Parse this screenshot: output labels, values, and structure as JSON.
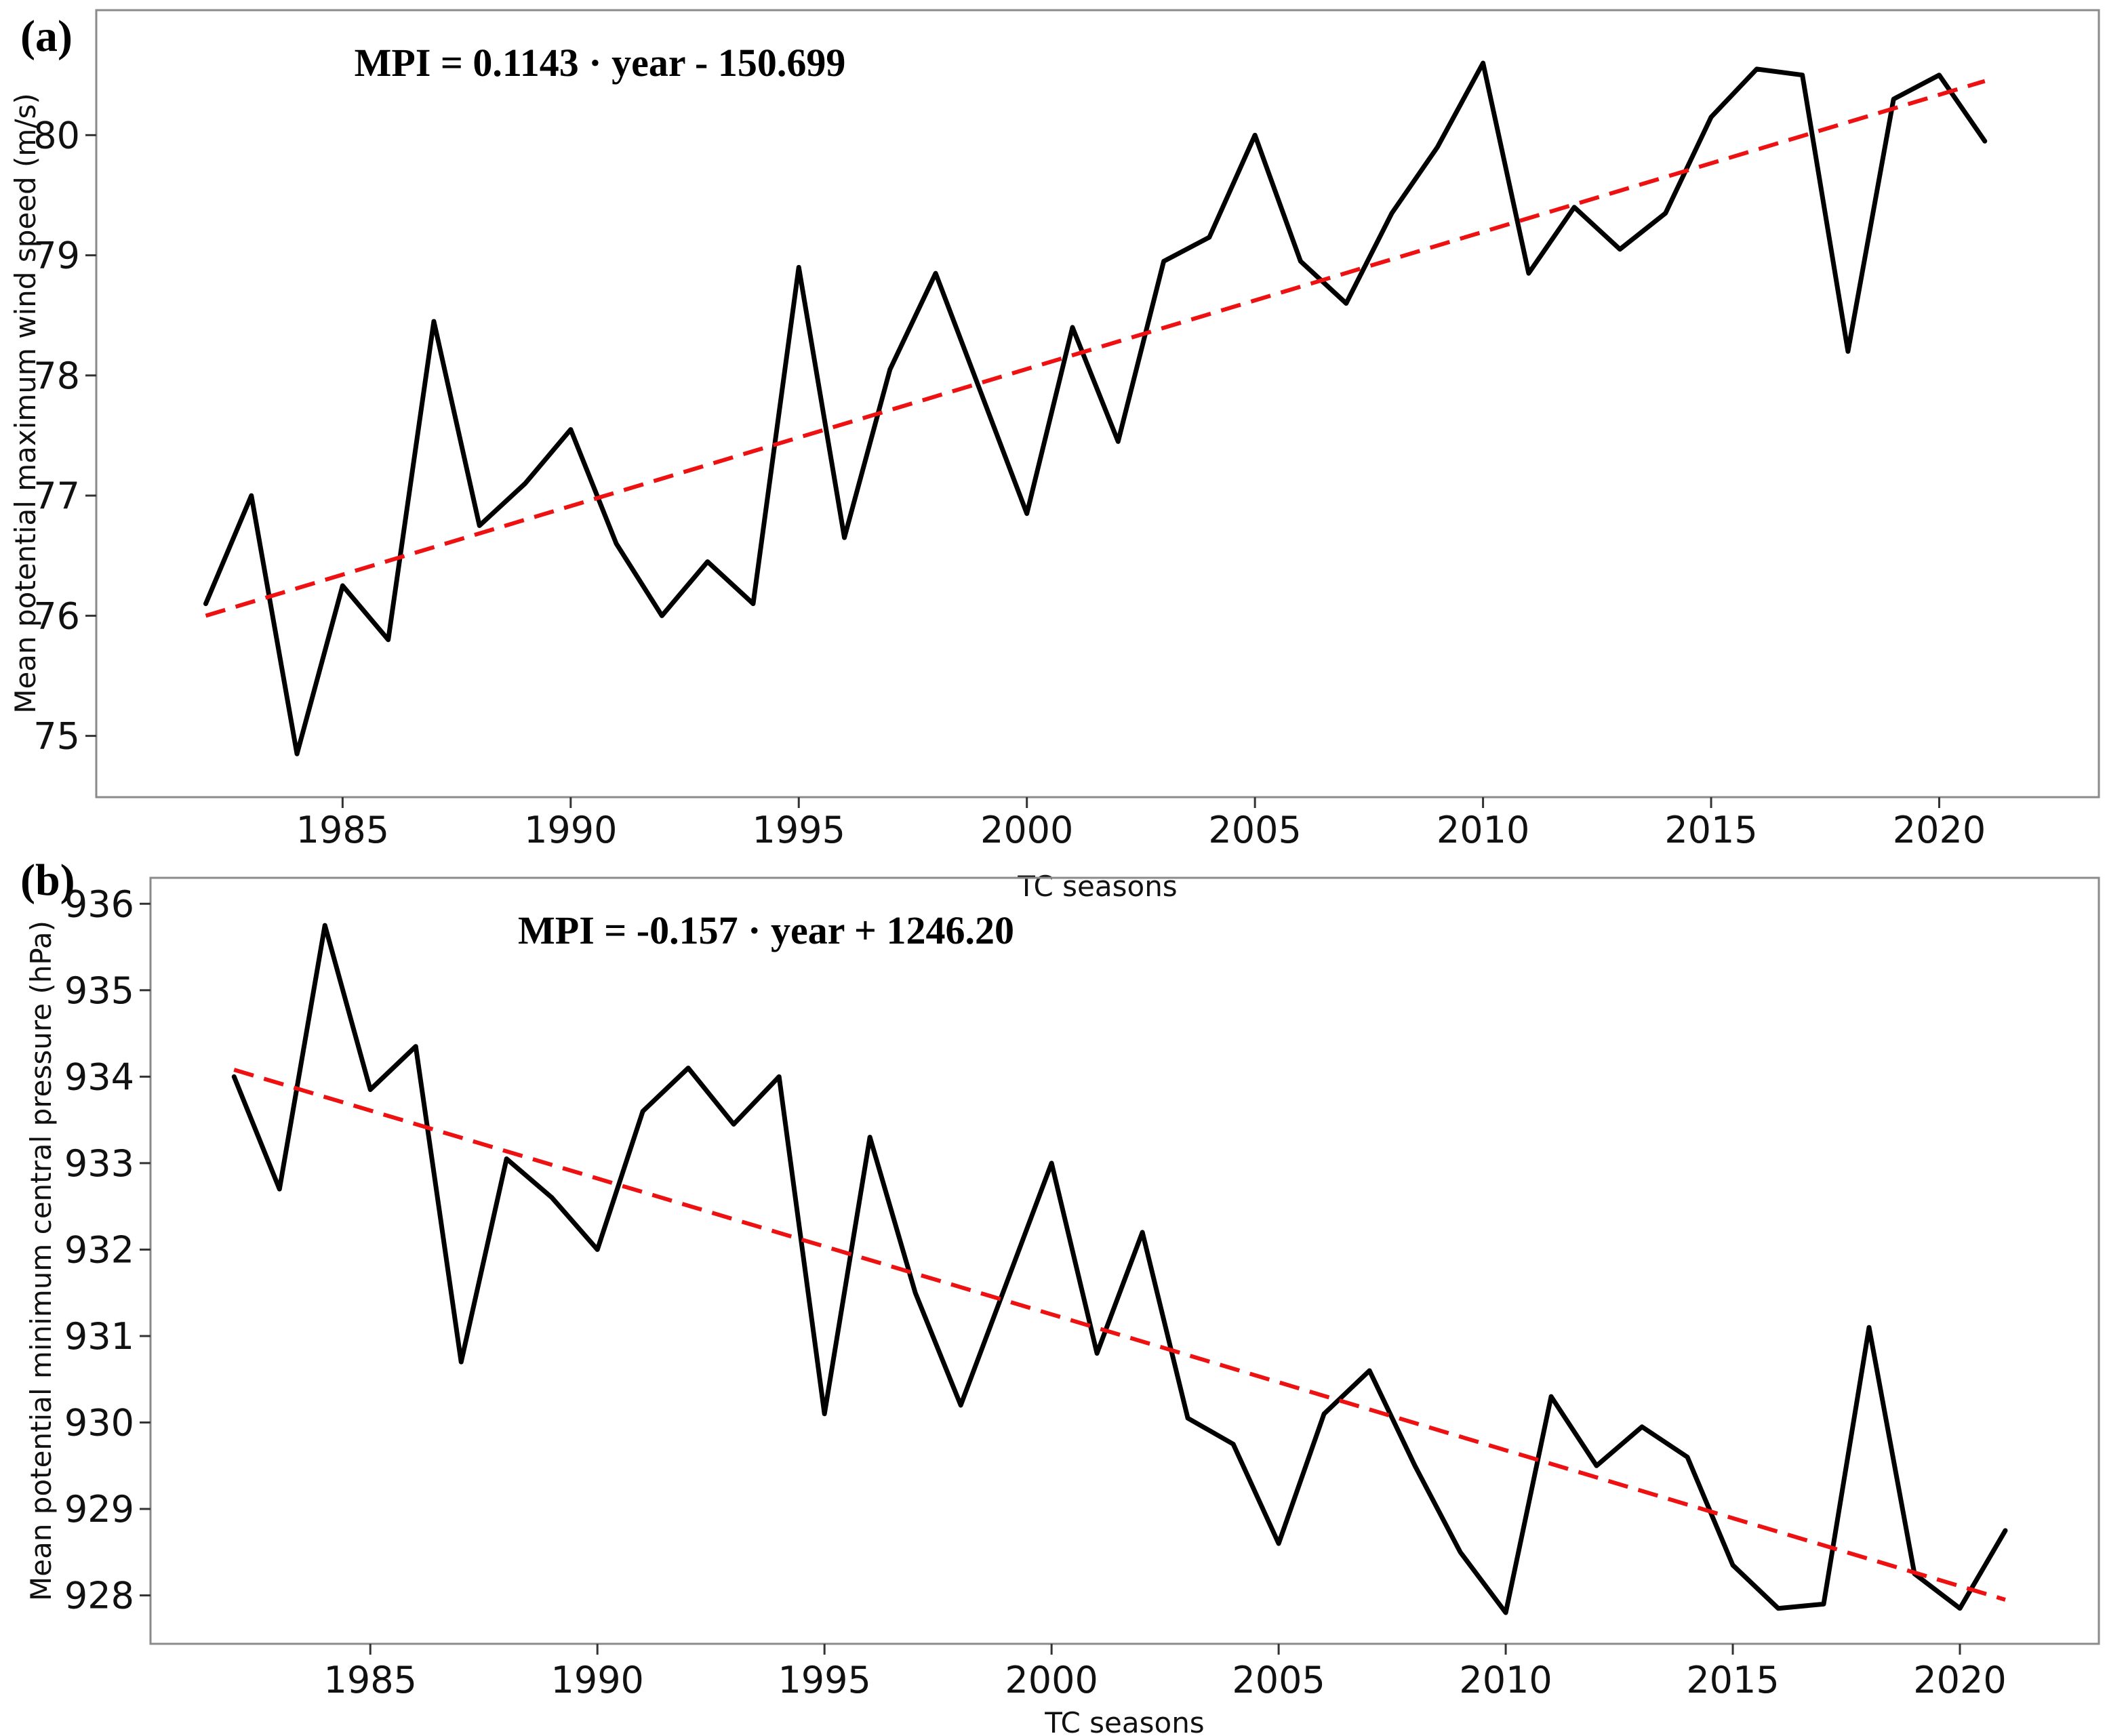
{
  "figure": {
    "background": "#ffffff",
    "frame_color": "#8a8a8a",
    "series_color": "#000000",
    "trend_color": "#ee1111",
    "panels": [
      {
        "tag": "(a)",
        "title": "MPI = 0.1143 · year - 150.699",
        "ylabel": "Mean potential maximum wind speed (m/s)",
        "xlabel": "TC seasons"
      },
      {
        "tag": "(b)",
        "title": "MPI = -0.157 · year + 1246.20",
        "ylabel": "Mean potential minimum central pressure (hPa)",
        "xlabel": "TC seasons"
      }
    ]
  },
  "chart_data": [
    {
      "type": "line",
      "panel": "a",
      "title": "MPI = 0.1143 · year - 150.699",
      "xlabel": "TC seasons",
      "ylabel": "Mean potential maximum wind speed (m/s)",
      "x": [
        1982,
        1983,
        1984,
        1985,
        1986,
        1987,
        1988,
        1989,
        1990,
        1991,
        1992,
        1993,
        1994,
        1995,
        1996,
        1997,
        1998,
        1999,
        2000,
        2001,
        2002,
        2003,
        2004,
        2005,
        2006,
        2007,
        2008,
        2009,
        2010,
        2011,
        2012,
        2013,
        2014,
        2015,
        2016,
        2017,
        2018,
        2019,
        2020,
        2021
      ],
      "series": [
        {
          "name": "Mean potential maximum wind speed",
          "color": "#000000",
          "style": "solid",
          "values": [
            76.1,
            77.0,
            74.85,
            76.25,
            75.8,
            78.45,
            76.75,
            77.1,
            77.55,
            76.6,
            76.0,
            76.45,
            76.1,
            78.9,
            76.65,
            78.05,
            78.85,
            77.85,
            76.85,
            78.4,
            77.45,
            78.95,
            79.15,
            80.0,
            78.95,
            78.6,
            79.35,
            79.9,
            80.6,
            78.85,
            79.4,
            79.05,
            79.35,
            80.15,
            80.55,
            80.5,
            78.2,
            80.3,
            80.5,
            79.95
          ]
        },
        {
          "name": "Linear trend (MPI = 0.1143*year - 150.699)",
          "color": "#ee1111",
          "style": "dashed",
          "trend_endpoints": {
            "x": [
              1982,
              2021
            ],
            "y": [
              76.0,
              80.45
            ]
          }
        }
      ],
      "x_ticks": [
        1985,
        1990,
        1995,
        2000,
        2005,
        2010,
        2015,
        2020
      ],
      "y_ticks": [
        75,
        76,
        77,
        78,
        79,
        80
      ],
      "xlim": [
        1979.6,
        2023.5
      ],
      "ylim": [
        74.49,
        81.04
      ],
      "grid": false,
      "legend": "none"
    },
    {
      "type": "line",
      "panel": "b",
      "title": "MPI = -0.157 · year + 1246.20",
      "xlabel": "TC seasons",
      "ylabel": "Mean potential minimum central pressure (hPa)",
      "x": [
        1982,
        1983,
        1984,
        1985,
        1986,
        1987,
        1988,
        1989,
        1990,
        1991,
        1992,
        1993,
        1994,
        1995,
        1996,
        1997,
        1998,
        1999,
        2000,
        2001,
        2002,
        2003,
        2004,
        2005,
        2006,
        2007,
        2008,
        2009,
        2010,
        2011,
        2012,
        2013,
        2014,
        2015,
        2016,
        2017,
        2018,
        2019,
        2020,
        2021
      ],
      "series": [
        {
          "name": "Mean potential minimum central pressure",
          "color": "#000000",
          "style": "solid",
          "values": [
            934.0,
            932.7,
            935.75,
            933.85,
            934.35,
            930.7,
            933.05,
            932.6,
            932.0,
            933.6,
            934.1,
            933.45,
            934.0,
            930.1,
            933.3,
            931.5,
            930.2,
            931.6,
            933.0,
            930.8,
            932.2,
            930.05,
            929.75,
            928.6,
            930.1,
            930.6,
            929.5,
            928.5,
            927.8,
            930.3,
            929.5,
            929.95,
            929.6,
            928.35,
            927.85,
            927.9,
            931.1,
            928.25,
            927.85,
            928.75
          ]
        },
        {
          "name": "Linear trend (MPI = -0.157*year + 1246.20)",
          "color": "#ee1111",
          "style": "dashed",
          "trend_endpoints": {
            "x": [
              1982,
              2021
            ],
            "y": [
              934.08,
              927.95
            ]
          }
        }
      ],
      "x_ticks": [
        1985,
        1990,
        1995,
        2000,
        2005,
        2010,
        2015,
        2020
      ],
      "y_ticks": [
        928,
        929,
        930,
        931,
        932,
        933,
        934,
        935,
        936
      ],
      "xlim": [
        1980.16,
        2023.06
      ],
      "ylim": [
        927.44,
        936.3
      ],
      "grid": false,
      "legend": "none"
    }
  ]
}
